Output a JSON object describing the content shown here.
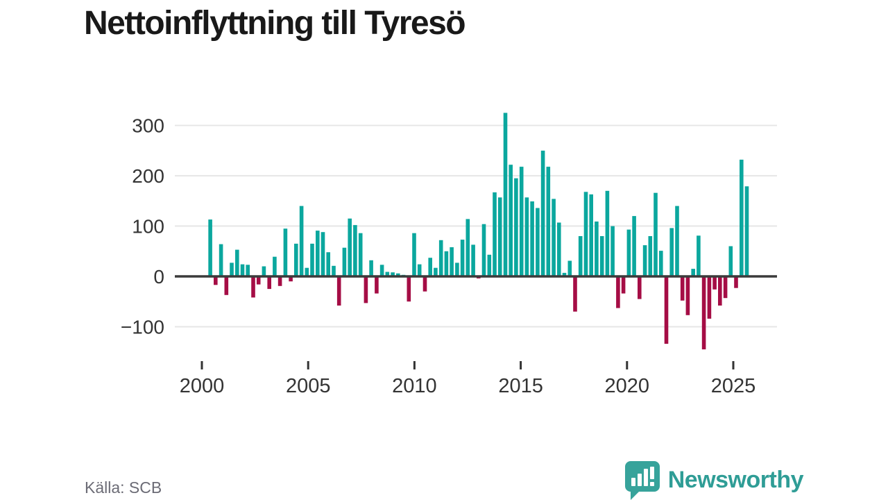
{
  "title": "Nettoinflyttning till Tyresö",
  "source": "Källa: SCB",
  "branding": {
    "name": "Newsworthy",
    "logo_icon": "speech-bubble-bar-chart-icon"
  },
  "colors": {
    "positive_bar": "#0ba79e",
    "negative_bar": "#a50d45",
    "zero_axis": "#3b3b3b",
    "gridline": "#e6e6e6",
    "tick_text": "#333333",
    "title_text": "#191919",
    "source_text": "#6b6b75",
    "brand_teal": "#2f9d96"
  },
  "chart_data": {
    "type": "bar",
    "title": "Nettoinflyttning till Tyresö",
    "xlabel": "",
    "ylabel": "",
    "unit": "persons (net migration per quarter)",
    "grid": "horizontal",
    "legend": "none",
    "ylim": [
      -160,
      345
    ],
    "y_ticks": [
      {
        "value": 300,
        "label": "300"
      },
      {
        "value": 200,
        "label": "200"
      },
      {
        "value": 100,
        "label": "100"
      },
      {
        "value": 0,
        "label": "0"
      },
      {
        "value": -100,
        "label": "−100"
      }
    ],
    "x_ticks": [
      {
        "year": 2000,
        "label": "2000"
      },
      {
        "year": 2005,
        "label": "2005"
      },
      {
        "year": 2010,
        "label": "2010"
      },
      {
        "year": 2015,
        "label": "2015"
      },
      {
        "year": 2020,
        "label": "2020"
      },
      {
        "year": 2025,
        "label": "2025"
      }
    ],
    "x": [
      "2000-Q3",
      "2000-Q4",
      "2001-Q1",
      "2001-Q2",
      "2001-Q3",
      "2001-Q4",
      "2002-Q1",
      "2002-Q2",
      "2002-Q3",
      "2002-Q4",
      "2003-Q1",
      "2003-Q2",
      "2003-Q3",
      "2003-Q4",
      "2004-Q1",
      "2004-Q2",
      "2004-Q3",
      "2004-Q4",
      "2005-Q1",
      "2005-Q2",
      "2005-Q3",
      "2005-Q4",
      "2006-Q1",
      "2006-Q2",
      "2006-Q3",
      "2006-Q4",
      "2007-Q1",
      "2007-Q2",
      "2007-Q3",
      "2007-Q4",
      "2008-Q1",
      "2008-Q2",
      "2008-Q3",
      "2008-Q4",
      "2009-Q1",
      "2009-Q2",
      "2009-Q3",
      "2009-Q4",
      "2010-Q1",
      "2010-Q2",
      "2010-Q3",
      "2010-Q4",
      "2011-Q1",
      "2011-Q2",
      "2011-Q3",
      "2011-Q4",
      "2012-Q1",
      "2012-Q2",
      "2012-Q3",
      "2012-Q4",
      "2013-Q1",
      "2013-Q2",
      "2013-Q3",
      "2013-Q4",
      "2014-Q1",
      "2014-Q2",
      "2014-Q3",
      "2014-Q4",
      "2015-Q1",
      "2015-Q2",
      "2015-Q3",
      "2015-Q4",
      "2016-Q1",
      "2016-Q2",
      "2016-Q3",
      "2016-Q4",
      "2017-Q1",
      "2017-Q2",
      "2017-Q3",
      "2017-Q4",
      "2018-Q1",
      "2018-Q2",
      "2018-Q3",
      "2018-Q4",
      "2019-Q1",
      "2019-Q2",
      "2019-Q3",
      "2019-Q4",
      "2020-Q1",
      "2020-Q2",
      "2020-Q3",
      "2020-Q4",
      "2021-Q1",
      "2021-Q2",
      "2021-Q3",
      "2021-Q4",
      "2022-Q1",
      "2022-Q2",
      "2022-Q3",
      "2022-Q4",
      "2023-Q1",
      "2023-Q2",
      "2023-Q3",
      "2023-Q4",
      "2024-Q1",
      "2024-Q2",
      "2024-Q3",
      "2024-Q4",
      "2025-Q1",
      "2025-Q2",
      "2025-Q3"
    ],
    "values": [
      113,
      -17,
      64,
      -37,
      27,
      53,
      24,
      23,
      -42,
      -16,
      20,
      -25,
      39,
      -19,
      95,
      -10,
      65,
      140,
      17,
      65,
      91,
      88,
      48,
      21,
      -58,
      57,
      115,
      102,
      86,
      -53,
      32,
      -34,
      23,
      9,
      8,
      6,
      3,
      -50,
      86,
      24,
      -30,
      37,
      17,
      72,
      50,
      58,
      27,
      73,
      114,
      63,
      -4,
      104,
      43,
      167,
      157,
      325,
      222,
      195,
      218,
      157,
      149,
      136,
      250,
      218,
      154,
      107,
      7,
      31,
      -70,
      80,
      168,
      163,
      109,
      80,
      170,
      100,
      -63,
      -34,
      93,
      120,
      -45,
      62,
      80,
      166,
      51,
      -134,
      96,
      140,
      -48,
      -77,
      15,
      81,
      -145,
      -84,
      -26,
      -58,
      -43,
      60,
      -23,
      232,
      179
    ]
  }
}
